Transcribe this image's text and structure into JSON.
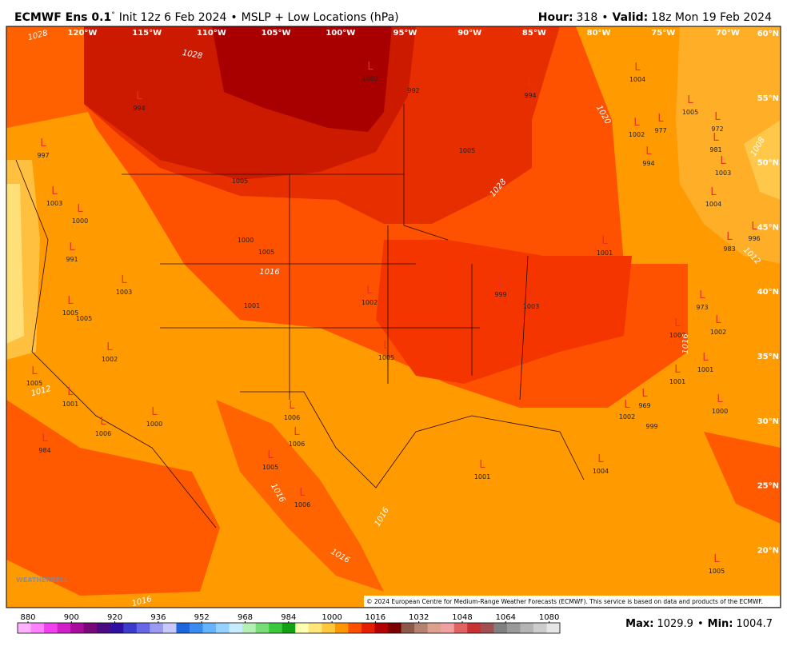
{
  "header": {
    "model": "ECMWF Ens 0.1",
    "degree": "°",
    "init": "Init 12z 6 Feb 2024",
    "separator": "•",
    "product": "MSLP + Low Locations (hPa)",
    "hour_label": "Hour:",
    "hour": "318",
    "valid_label": "Valid:",
    "valid": "18z Mon 19 Feb 2024"
  },
  "map": {
    "longitudes": [
      "120°W",
      "115°W",
      "110°W",
      "105°W",
      "100°W",
      "95°W",
      "90°W",
      "85°W",
      "80°W",
      "75°W",
      "70°W"
    ],
    "latitudes": [
      "60°N",
      "55°N",
      "50°N",
      "45°N",
      "40°N",
      "35°N",
      "30°N",
      "25°N",
      "20°N"
    ],
    "low_symbol": "L",
    "lows": [
      1002,
      994,
      994,
      1004,
      1002,
      977,
      994,
      1005,
      972,
      981,
      1003,
      1004,
      996,
      983,
      997,
      1003,
      1000,
      991,
      1003,
      1005,
      1002,
      1005,
      1001,
      1006,
      984,
      999,
      1003,
      1005,
      1006,
      1006,
      1005,
      1006,
      1001,
      1004,
      969,
      1002,
      1001,
      1001,
      1000,
      1002,
      973,
      1000,
      1002,
      1000,
      1005,
      1001
    ],
    "pressure_labels": [
      992,
      1005,
      1005,
      1005,
      1000,
      1001,
      999,
      1005
    ],
    "contour_labels": [
      1028,
      1028,
      1020,
      1028,
      1016,
      1012,
      1016,
      1016,
      1016,
      1016,
      1016,
      1012,
      1008
    ],
    "watermark": "WEATHERBELL",
    "copyright": "© 2024 European Centre for Medium-Range Weather Forecasts (ECMWF). This service is based on data and products of the ECMWF."
  },
  "colorbar": {
    "colors": [
      "#ffb3ff",
      "#ff80ff",
      "#f040f0",
      "#d020c8",
      "#a80c9c",
      "#7a087a",
      "#4a0c80",
      "#3010a0",
      "#3c3ccc",
      "#6666e6",
      "#9a9af0",
      "#c8c8fa",
      "#1e64dc",
      "#3c8cf0",
      "#64b4ff",
      "#96d2ff",
      "#c8ebff",
      "#b4f0b4",
      "#78dc78",
      "#3cc83c",
      "#14a014",
      "#ffffb4",
      "#ffe678",
      "#ffc83c",
      "#ff9600",
      "#ff5000",
      "#e61e00",
      "#b40000",
      "#7a0000",
      "#8c5a4a",
      "#b48270",
      "#dca08c",
      "#f0a0a0",
      "#e06464",
      "#c83232",
      "#a05050",
      "#808080",
      "#9a9a9a",
      "#b4b4b4",
      "#cccccc",
      "#e6e6e6"
    ],
    "ticks": [
      880,
      900,
      920,
      936,
      952,
      968,
      984,
      1000,
      1016,
      1032,
      1048,
      1064,
      1080
    ]
  },
  "footer": {
    "max_label": "Max:",
    "max": 1029.9,
    "min_label": "Min:",
    "min": 1004.7
  }
}
